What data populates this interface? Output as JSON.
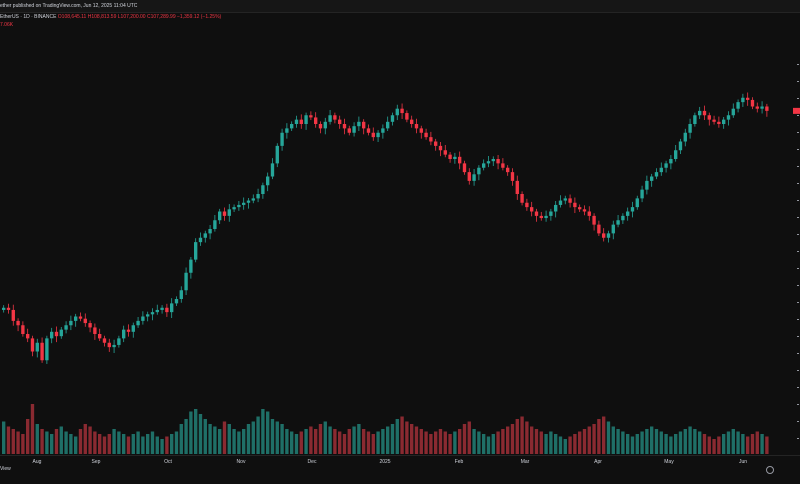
{
  "header": {
    "publish_text": "ether published on TradingView.com, Jun 12, 2025 11:04 UTC"
  },
  "legend": {
    "symbol": "EtherUS · 1D · BINANCE",
    "open": "O108,645.11",
    "high": "H108,813.59",
    "low": "L107,200.00",
    "close": "C107,289.99",
    "change": "−1,359.12 (−1.25%)",
    "vol": "7.06K"
  },
  "footer": {
    "logo_text": "View"
  },
  "colors": {
    "up": "#26a69a",
    "down": "#f23645",
    "background": "#0f0f0f",
    "up_volume": "#1f6f67",
    "down_volume": "#8a2a31"
  },
  "chart_data": {
    "type": "candlestick",
    "x_ticks": [
      "Aug",
      "Sep",
      "Oct",
      "Nov",
      "Dec",
      "2025",
      "Feb",
      "Mar",
      "Apr",
      "May",
      "Jun"
    ],
    "series": [
      {
        "name": "Price",
        "values": [
          62.0,
          61.5,
          59.0,
          58.0,
          56.0,
          55.0,
          52.0,
          54.0,
          50.0,
          55.0,
          56.5,
          55.5,
          57.0,
          58.0,
          59.0,
          60.0,
          59.5,
          58.5,
          57.5,
          56.0,
          55.0,
          54.0,
          53.0,
          53.5,
          55.0,
          57.0,
          56.5,
          58.0,
          59.0,
          60.0,
          60.5,
          61.0,
          61.5,
          62.0,
          61.0,
          63.0,
          64.0,
          66.0,
          70.0,
          73.0,
          77.0,
          78.0,
          79.0,
          80.0,
          82.0,
          84.0,
          83.0,
          84.5,
          85.0,
          85.5,
          86.0,
          86.5,
          87.0,
          88.0,
          90.0,
          92.0,
          95.0,
          99.0,
          102.0,
          103.0,
          104.0,
          105.0,
          104.0,
          106.0,
          105.5,
          104.0,
          103.0,
          104.5,
          106.0,
          105.0,
          104.0,
          103.0,
          102.0,
          103.5,
          104.5,
          103.0,
          102.0,
          101.0,
          102.0,
          103.0,
          104.5,
          106.0,
          107.5,
          106.5,
          105.0,
          104.0,
          103.0,
          102.0,
          101.0,
          100.0,
          99.0,
          98.0,
          97.0,
          96.0,
          96.5,
          95.0,
          93.0,
          91.0,
          92.5,
          94.0,
          95.0,
          95.5,
          96.0,
          95.0,
          94.0,
          93.0,
          91.0,
          88.0,
          86.0,
          85.0,
          84.0,
          83.0,
          82.5,
          83.0,
          84.0,
          85.5,
          86.5,
          87.0,
          86.0,
          85.0,
          84.5,
          84.0,
          83.0,
          81.0,
          79.0,
          78.0,
          79.0,
          81.0,
          82.0,
          83.0,
          84.0,
          85.0,
          87.0,
          89.0,
          91.0,
          92.0,
          93.0,
          94.0,
          95.0,
          96.0,
          98.0,
          100.0,
          102.0,
          104.0,
          106.0,
          107.0,
          106.0,
          105.0,
          104.5,
          104.0,
          105.0,
          106.0,
          107.5,
          109.0,
          110.0,
          109.5,
          108.0,
          107.5,
          108.0,
          107.0
        ]
      },
      {
        "name": "Volume",
        "values": [
          13.0,
          11.0,
          10.0,
          9.0,
          8.0,
          14.0,
          20.0,
          12.0,
          10.0,
          9.0,
          8.0,
          10.0,
          11.0,
          9.0,
          8.0,
          7.0,
          10.0,
          12.0,
          11.0,
          9.0,
          8.0,
          7.0,
          8.0,
          10.0,
          9.0,
          8.0,
          7.0,
          8.0,
          9.0,
          7.0,
          8.0,
          9.0,
          7.0,
          6.0,
          7.0,
          8.0,
          9.0,
          12.0,
          14.0,
          17.0,
          18.0,
          16.0,
          14.0,
          12.0,
          11.0,
          10.0,
          13.0,
          12.0,
          10.0,
          9.0,
          10.0,
          12.0,
          13.0,
          15.0,
          18.0,
          17.0,
          14.0,
          13.0,
          12.0,
          10.0,
          9.0,
          8.0,
          9.0,
          10.0,
          11.0,
          10.0,
          12.0,
          13.0,
          11.0,
          10.0,
          9.0,
          8.0,
          10.0,
          11.0,
          12.0,
          10.0,
          9.0,
          8.0,
          9.0,
          10.0,
          11.0,
          12.0,
          14.0,
          15.0,
          13.0,
          12.0,
          11.0,
          10.0,
          9.0,
          8.0,
          9.0,
          10.0,
          9.0,
          8.0,
          9.0,
          10.0,
          12.0,
          13.0,
          10.0,
          9.0,
          8.0,
          7.0,
          8.0,
          9.0,
          10.0,
          11.0,
          12.0,
          14.0,
          15.0,
          13.0,
          11.0,
          10.0,
          9.0,
          8.0,
          9.0,
          8.0,
          7.0,
          6.0,
          7.0,
          8.0,
          9.0,
          10.0,
          11.0,
          12.0,
          14.0,
          15.0,
          13.0,
          11.0,
          10.0,
          9.0,
          8.0,
          7.0,
          8.0,
          9.0,
          10.0,
          11.0,
          10.0,
          9.0,
          8.0,
          7.0,
          8.0,
          9.0,
          10.0,
          11.0,
          10.0,
          9.0,
          8.0,
          7.0,
          6.0,
          7.0,
          8.0,
          9.0,
          10.0,
          9.0,
          8.0,
          7.0,
          8.0,
          9.0,
          8.0,
          7.0
        ]
      }
    ],
    "ylim_price": [
      40,
      120
    ],
    "ylim_volume": [
      0,
      30
    ],
    "grid": false,
    "legend_position": "top-left"
  }
}
